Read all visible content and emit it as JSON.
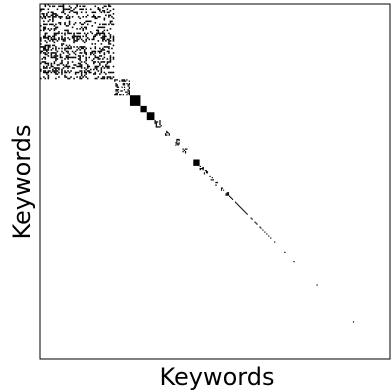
{
  "chart_data": {
    "type": "heatmap",
    "title": "",
    "xlabel": "Keywords",
    "ylabel": "Keywords",
    "grid": false,
    "legend": "none",
    "tick_labels": false,
    "matrix_size": 100,
    "colors": {
      "cell": "#000000",
      "background": "#ffffff",
      "frame": "#000000"
    },
    "blocks": [
      {
        "name": "dense-cluster",
        "start": 0,
        "end": 21.2,
        "density": 0.5
      },
      {
        "name": "cluster-2",
        "start": 21.2,
        "end": 25.7,
        "density": 0.55
      },
      {
        "name": "cluster-3",
        "start": 25.7,
        "end": 28.7,
        "density": 1.0
      },
      {
        "name": "cluster-4",
        "start": 28.7,
        "end": 30.5,
        "density": 0.95
      },
      {
        "name": "cluster-5",
        "start": 30.5,
        "end": 32.7,
        "density": 0.95
      },
      {
        "name": "cluster-6",
        "start": 32.7,
        "end": 34.8,
        "density": 0.9
      },
      {
        "name": "cluster-7",
        "start": 35.7,
        "end": 37.1,
        "density": 0.75
      },
      {
        "name": "cluster-8",
        "start": 38.0,
        "end": 39.9,
        "density": 0.6
      },
      {
        "name": "cluster-9",
        "start": 40.7,
        "end": 42.1,
        "density": 0.8
      },
      {
        "name": "cluster-10",
        "start": 43.8,
        "end": 45.6,
        "density": 1.0
      },
      {
        "name": "cluster-11",
        "start": 45.6,
        "end": 46.8,
        "density": 0.9
      },
      {
        "name": "cluster-12",
        "start": 46.8,
        "end": 48.0,
        "density": 0.9
      },
      {
        "name": "cluster-13",
        "start": 48.4,
        "end": 49.7,
        "density": 0.9
      },
      {
        "name": "cluster-14",
        "start": 50.1,
        "end": 51.2,
        "density": 0.85
      },
      {
        "name": "cluster-15",
        "start": 51.7,
        "end": 52.6,
        "density": 0.85
      },
      {
        "name": "cluster-16",
        "start": 53.0,
        "end": 54.0,
        "density": 0.8
      }
    ],
    "diagonal_tail": {
      "start": 54.0,
      "end": 65.8,
      "density": 0.75
    },
    "sparse_diagonal": [
      66.9,
      69.8,
      72.4,
      79.0,
      89.4
    ]
  }
}
